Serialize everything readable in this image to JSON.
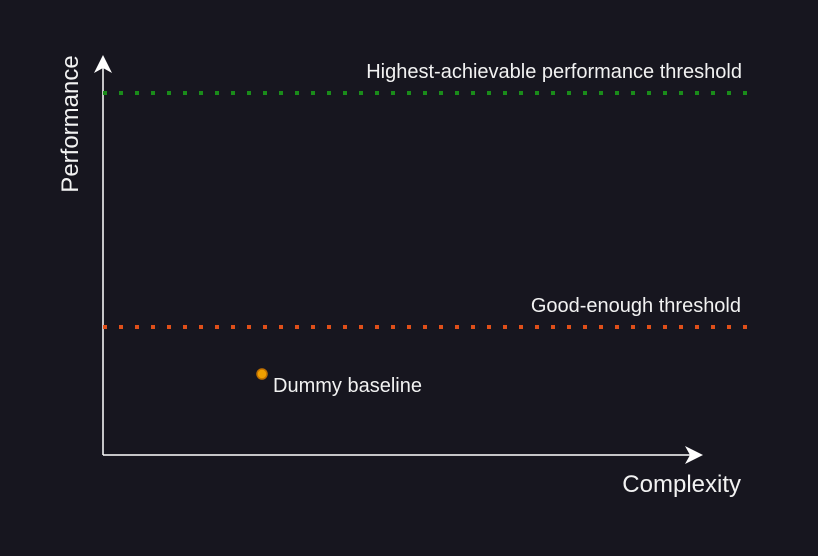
{
  "background_color": "#17161f",
  "axis_color": "#ffffff",
  "axes": {
    "x_label": "Complexity",
    "y_label": "Performance"
  },
  "thresholds": [
    {
      "id": "highest",
      "label": "Highest-achievable performance threshold",
      "color": "#1a8c1a",
      "style": "dotted"
    },
    {
      "id": "good-enough",
      "label": "Good-enough threshold",
      "color": "#e0501a",
      "style": "dotted"
    }
  ],
  "points": [
    {
      "id": "dummy",
      "label": "Dummy baseline",
      "fill": "#f0a000",
      "stroke": "#c07000"
    }
  ]
}
